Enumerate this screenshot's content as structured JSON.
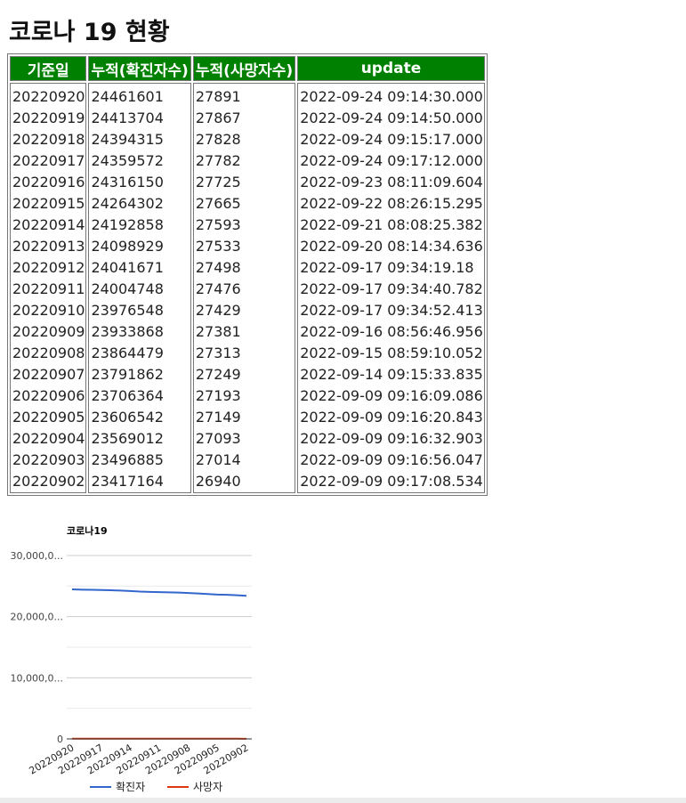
{
  "page": {
    "title": "코로나 19 현황"
  },
  "table": {
    "headers": [
      "기준일",
      "누적(확진자수)",
      "누적(사망자수)",
      "update"
    ],
    "rows": [
      [
        "20220920",
        "24461601",
        "27891",
        "2022-09-24 09:14:30.000"
      ],
      [
        "20220919",
        "24413704",
        "27867",
        "2022-09-24 09:14:50.000"
      ],
      [
        "20220918",
        "24394315",
        "27828",
        "2022-09-24 09:15:17.000"
      ],
      [
        "20220917",
        "24359572",
        "27782",
        "2022-09-24 09:17:12.000"
      ],
      [
        "20220916",
        "24316150",
        "27725",
        "2022-09-23 08:11:09.604"
      ],
      [
        "20220915",
        "24264302",
        "27665",
        "2022-09-22 08:26:15.295"
      ],
      [
        "20220914",
        "24192858",
        "27593",
        "2022-09-21 08:08:25.382"
      ],
      [
        "20220913",
        "24098929",
        "27533",
        "2022-09-20 08:14:34.636"
      ],
      [
        "20220912",
        "24041671",
        "27498",
        "2022-09-17 09:34:19.18"
      ],
      [
        "20220911",
        "24004748",
        "27476",
        "2022-09-17 09:34:40.782"
      ],
      [
        "20220910",
        "23976548",
        "27429",
        "2022-09-17 09:34:52.413"
      ],
      [
        "20220909",
        "23933868",
        "27381",
        "2022-09-16 08:56:46.956"
      ],
      [
        "20220908",
        "23864479",
        "27313",
        "2022-09-15 08:59:10.052"
      ],
      [
        "20220907",
        "23791862",
        "27249",
        "2022-09-14 09:15:33.835"
      ],
      [
        "20220906",
        "23706364",
        "27193",
        "2022-09-09 09:16:09.086"
      ],
      [
        "20220905",
        "23606542",
        "27149",
        "2022-09-09 09:16:20.843"
      ],
      [
        "20220904",
        "23569012",
        "27093",
        "2022-09-09 09:16:32.903"
      ],
      [
        "20220903",
        "23496885",
        "27014",
        "2022-09-09 09:16:56.047"
      ],
      [
        "20220902",
        "23417164",
        "26940",
        "2022-09-09 09:17:08.534"
      ]
    ]
  },
  "colors": {
    "header_bg": "#008000",
    "header_text": "#ffffff",
    "series_confirmed": "#3366cc",
    "series_deaths": "#dc3912"
  },
  "chart_data": {
    "type": "line",
    "title": "코로나19",
    "x": [
      "20220920",
      "20220919",
      "20220918",
      "20220917",
      "20220916",
      "20220915",
      "20220914",
      "20220913",
      "20220912",
      "20220911",
      "20220910",
      "20220909",
      "20220908",
      "20220907",
      "20220906",
      "20220905",
      "20220904",
      "20220903",
      "20220902"
    ],
    "x_tick_labels": [
      "20220920",
      "20220917",
      "20220914",
      "20220911",
      "20220908",
      "20220905",
      "20220902"
    ],
    "y_tick_labels": [
      "30,000,0...",
      "20,000,0...",
      "10,000,0...",
      "0"
    ],
    "y_ticks": [
      30000000,
      20000000,
      10000000,
      0
    ],
    "ylim": [
      0,
      30000000
    ],
    "grid": true,
    "legend_position": "bottom",
    "series": [
      {
        "name": "확진자",
        "color": "#3366cc",
        "values": [
          24461601,
          24413704,
          24394315,
          24359572,
          24316150,
          24264302,
          24192858,
          24098929,
          24041671,
          24004748,
          23976548,
          23933868,
          23864479,
          23791862,
          23706364,
          23606542,
          23569012,
          23496885,
          23417164
        ]
      },
      {
        "name": "사망자",
        "color": "#dc3912",
        "values": [
          27891,
          27867,
          27828,
          27782,
          27725,
          27665,
          27593,
          27533,
          27498,
          27476,
          27429,
          27381,
          27313,
          27249,
          27193,
          27149,
          27093,
          27014,
          26940
        ]
      }
    ]
  }
}
